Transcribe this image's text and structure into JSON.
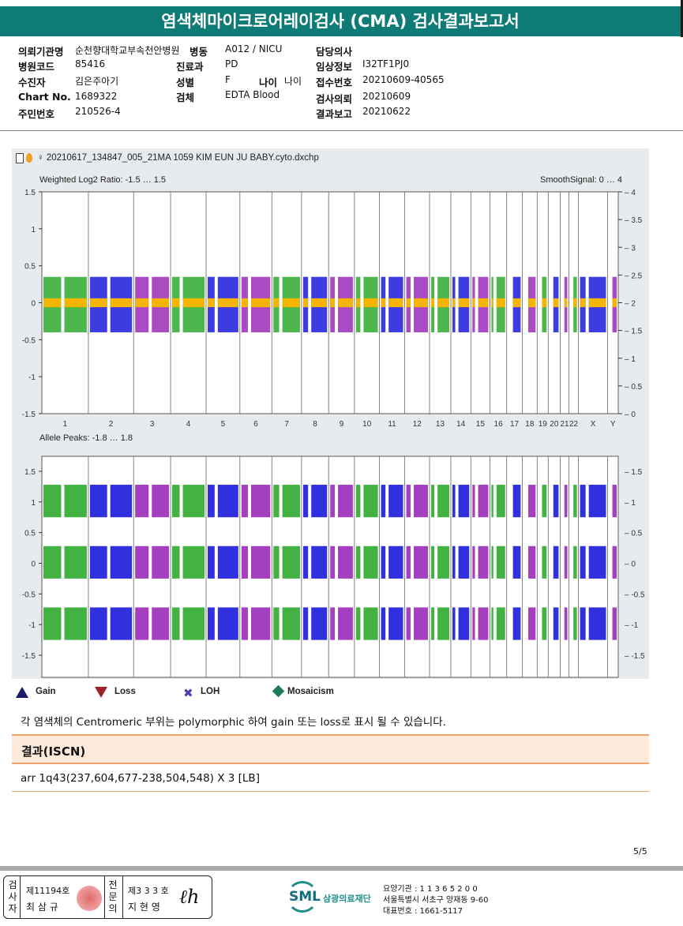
{
  "title": "염색체마이크로어레이검사 (CMA) 검사결과보고서",
  "info": {
    "institution_label": "의뢰기관명",
    "institution": "순천향대학교부속천안병원",
    "ward_label": "병동",
    "ward": "A012 / NICU",
    "doctor_label": "담당의사",
    "doctor": "",
    "hospital_code_label": "병원코드",
    "hospital_code": "85416",
    "dept_label": "진료과",
    "dept": "PD",
    "clinical_label": "임상정보",
    "clinical": "I32TF1PJ0",
    "patient_label": "수진자",
    "patient": "김은주아기",
    "sex_label": "성별",
    "sex": "F",
    "age_label": "나이",
    "age": "나이",
    "receipt_label": "접수번호",
    "receipt": "20210609-40565",
    "chart_label": "Chart No.",
    "chart": "1689322",
    "specimen_label": "검체",
    "specimen": "EDTA Blood",
    "request_label": "검사의뢰",
    "request": "20210609",
    "id_label": "주민번호",
    "id": "210526-4",
    "report_label": "결과보고",
    "report": "20210622"
  },
  "chart_data": {
    "type": "scatter",
    "file": "♀ 20210617_134847_005_21MA 1059 KIM EUN JU BABY.cyto.dxchp",
    "top": {
      "title": "Weighted Log2 Ratio: -1.5 … 1.5",
      "right_title": "SmoothSignal: 0 … 4",
      "ylim": [
        -1.5,
        1.5
      ],
      "y2lim": [
        0,
        4
      ],
      "yticks": [
        "1.5",
        "1",
        "0.5",
        "0",
        "-0.5",
        "-1",
        "-1.5"
      ],
      "yvals": [
        1.5,
        1,
        0.5,
        0,
        -0.5,
        -1,
        -1.5
      ],
      "y2ticks": [
        "4",
        "3.5",
        "3",
        "2.5",
        "2",
        "1.5",
        "1",
        "0.5",
        "0"
      ],
      "y2vals": [
        4,
        3.5,
        3,
        2.5,
        2,
        1.5,
        1,
        0.5,
        0
      ]
    },
    "bottom": {
      "title": "Allele Peaks: -1.8 … 1.8",
      "ylim": [
        -1.8,
        1.8
      ],
      "yticks": [
        "1.5",
        "1",
        "0.5",
        "0",
        "-0.5",
        "-1",
        "-1.5"
      ],
      "yvals": [
        1.5,
        1,
        0.5,
        0,
        -0.5,
        -1,
        -1.5
      ],
      "peaks": [
        1,
        0,
        -1
      ]
    },
    "chromosomes": [
      "1",
      "2",
      "3",
      "4",
      "5",
      "6",
      "7",
      "8",
      "9",
      "10",
      "11",
      "12",
      "13",
      "14",
      "15",
      "16",
      "17",
      "18",
      "19",
      "20",
      "21",
      "22",
      "X",
      "Y"
    ],
    "lengths_mb": [
      249,
      242,
      198,
      190,
      181,
      171,
      159,
      145,
      138,
      134,
      135,
      133,
      114,
      107,
      102,
      90,
      83,
      80,
      59,
      64,
      47,
      51,
      156,
      57
    ],
    "colors": [
      "#2eaa2e",
      "#1a1adc",
      "#9a2bb8"
    ],
    "smooth_color": "#f5b400"
  },
  "legend": [
    {
      "label": "Gain",
      "color": "#1b1b6e"
    },
    {
      "label": "Loss",
      "color": "#a01f2e"
    },
    {
      "label": "LOH",
      "color": "#4a3fae"
    },
    {
      "label": "Mosaicism",
      "color": "#1e7a5e"
    }
  ],
  "note": "각 염색체의 Centromeric 부위는 polymorphic 하여 gain 또는 loss로 표시 될 수 있습니다.",
  "result_label": "결과(ISCN)",
  "result": "arr 1q43(237,604,677-238,504,548) X 3 [LB]",
  "page": "5/5",
  "footer": {
    "examiner_label": "검사자",
    "examiner_no": "제11194호",
    "examiner_name": "최 삼 규",
    "specialist_label": "전문의",
    "specialist_no": "제3 3 3 호",
    "specialist_name": "지 현 영",
    "logo": "SML",
    "org": "삼광의료재단",
    "code": "요양기관 : 1 1 3 6 5 2 0 0",
    "address": "서울특별시 서초구 양재동 9-60",
    "phone": "대표번호 : 1661-5117"
  }
}
